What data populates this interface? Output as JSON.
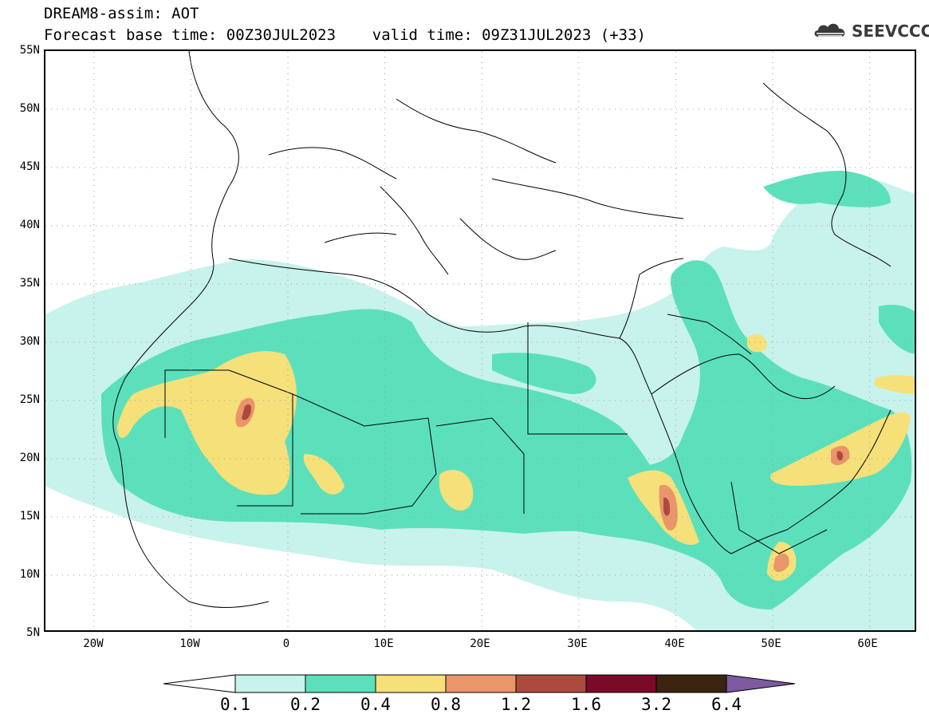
{
  "header": {
    "title_line1": "DREAM8-assim: AOT",
    "title_line2": "Forecast base time: 00Z30JUL2023    valid time: 09Z31JUL2023 (+33)"
  },
  "logo": {
    "text": "SEEVCCC",
    "icon": "cloud-icon"
  },
  "map": {
    "projection": "lat-lon",
    "lon_range": [
      -25,
      65
    ],
    "lat_range": [
      5,
      55
    ],
    "lat_labels": [
      "55N",
      "50N",
      "45N",
      "40N",
      "35N",
      "30N",
      "25N",
      "20N",
      "15N",
      "10N",
      "5N"
    ],
    "lon_labels": [
      "20W",
      "10W",
      "0",
      "10E",
      "20E",
      "30E",
      "40E",
      "50E",
      "60E"
    ],
    "gridlines": "dotted"
  },
  "legend": {
    "labels": [
      "0.1",
      "0.2",
      "0.4",
      "0.8",
      "1.2",
      "1.6",
      "3.2",
      "6.4"
    ],
    "colors": [
      "#ffffff",
      "#c8f2ec",
      "#5ce0bc",
      "#f5e07a",
      "#ea956a",
      "#ad4a3e",
      "#7a0a28",
      "#3b2410",
      "#7e5aa0"
    ]
  }
}
